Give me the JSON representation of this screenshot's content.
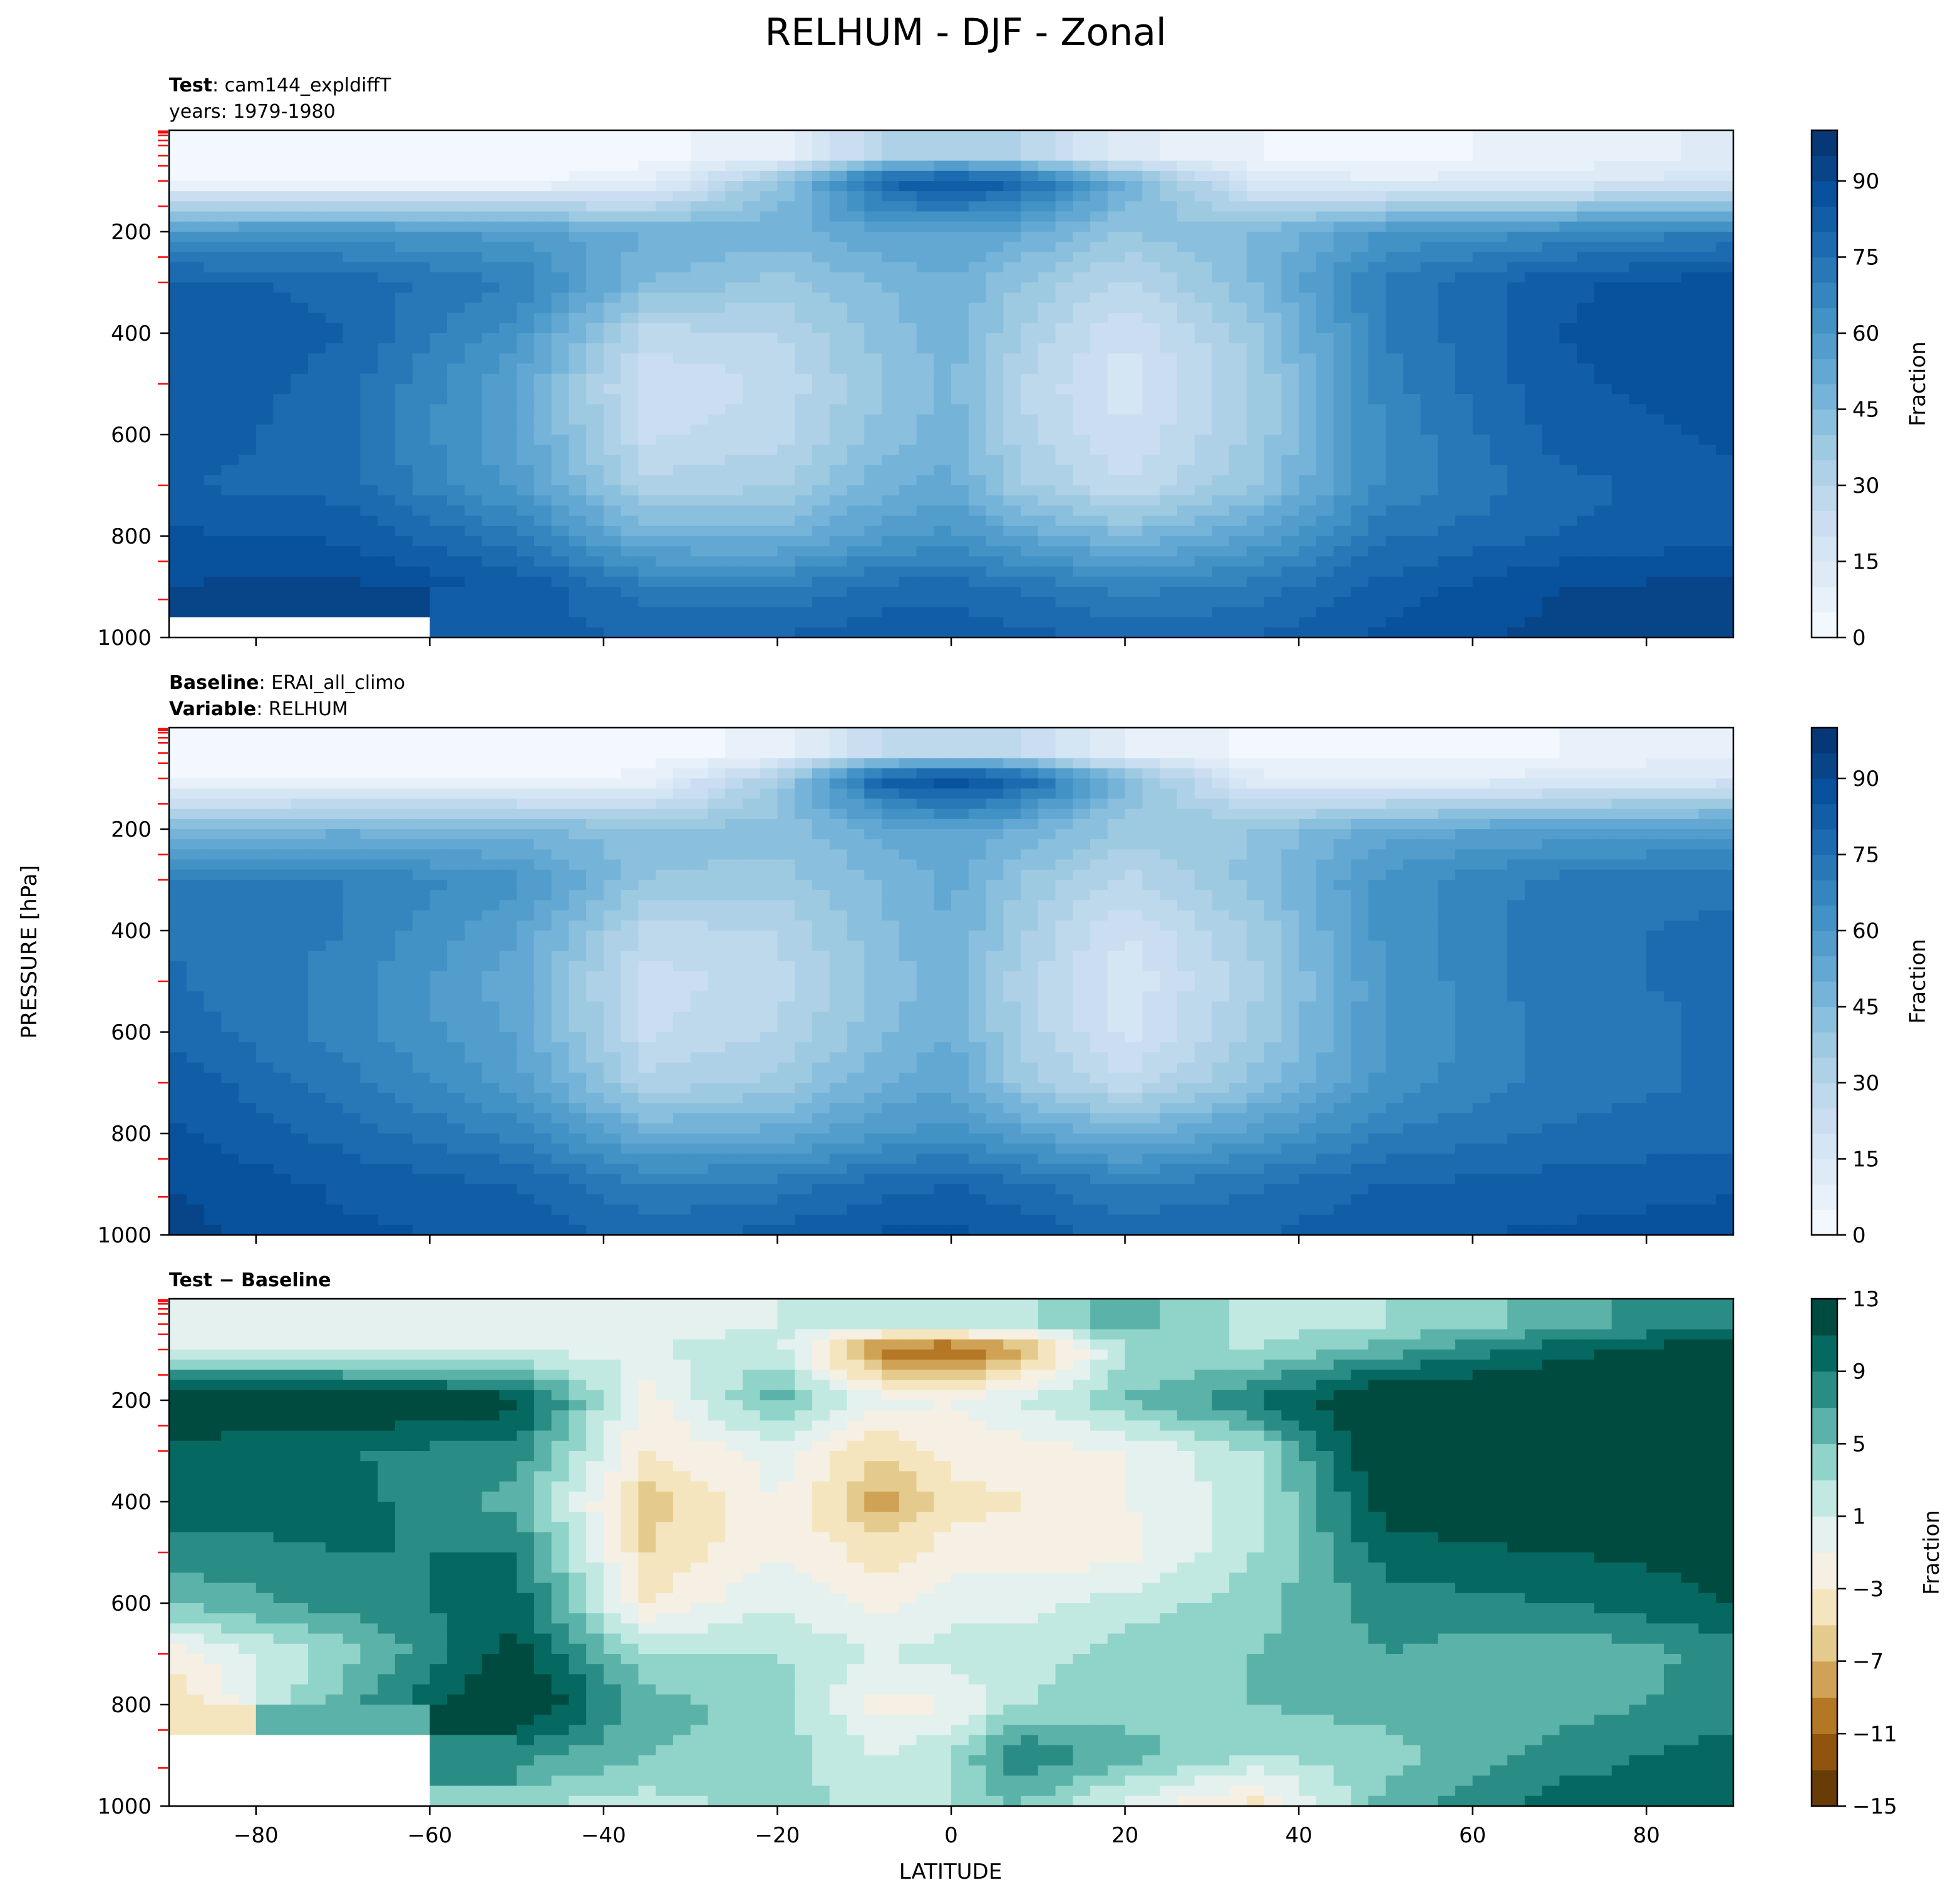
{
  "figure": {
    "title": "RELHUM - DJF - Zonal",
    "ylabel": "PRESSURE [hPa]",
    "xlabel": "LATITUDE"
  },
  "chart_data": [
    {
      "type": "heatmap",
      "panel": "test",
      "title_lines": [
        {
          "bold": "Test",
          "text": ": cam144_expldiffT"
        },
        {
          "bold": "",
          "text": "years: 1979-1980"
        }
      ],
      "x_range": [
        -90,
        90
      ],
      "y_range": [
        1000,
        0
      ],
      "y_ticks": [
        200,
        400,
        600,
        800,
        1000
      ],
      "x_ticks": [
        -80,
        -60,
        -40,
        -20,
        0,
        20,
        40,
        60,
        80
      ],
      "colormap": "Blues",
      "levels_range": [
        0,
        100
      ],
      "colorbar": {
        "label": "Fraction",
        "ticks": [
          0,
          15,
          30,
          45,
          60,
          75,
          90
        ]
      },
      "field_samples": {
        "latitudes": [
          -90,
          -70,
          -50,
          -35,
          -20,
          -8,
          0,
          8,
          20,
          35,
          50,
          70,
          90
        ],
        "pressures": [
          50,
          100,
          200,
          300,
          400,
          500,
          600,
          700,
          800,
          900,
          1000
        ],
        "values": [
          [
            2,
            2,
            2,
            3,
            8,
            30,
            35,
            30,
            12,
            5,
            4,
            6,
            12
          ],
          [
            3,
            3,
            4,
            8,
            40,
            80,
            88,
            80,
            50,
            15,
            10,
            14,
            18
          ],
          [
            60,
            62,
            58,
            50,
            48,
            55,
            55,
            52,
            40,
            45,
            60,
            65,
            70
          ],
          [
            82,
            78,
            70,
            45,
            38,
            45,
            50,
            40,
            28,
            45,
            72,
            84,
            88
          ],
          [
            84,
            80,
            62,
            28,
            30,
            42,
            48,
            35,
            20,
            38,
            70,
            85,
            90
          ],
          [
            85,
            78,
            55,
            20,
            26,
            40,
            46,
            30,
            17,
            35,
            68,
            84,
            88
          ],
          [
            84,
            76,
            55,
            24,
            28,
            42,
            48,
            32,
            20,
            36,
            66,
            82,
            86
          ],
          [
            80,
            78,
            58,
            32,
            34,
            48,
            52,
            36,
            25,
            40,
            66,
            78,
            84
          ],
          [
            86,
            84,
            72,
            48,
            48,
            58,
            62,
            54,
            45,
            55,
            74,
            80,
            84
          ],
          [
            90,
            92,
            84,
            72,
            70,
            76,
            78,
            74,
            68,
            72,
            82,
            90,
            92
          ],
          [
            null,
            null,
            84,
            78,
            80,
            84,
            84,
            82,
            78,
            80,
            86,
            92,
            94
          ]
        ]
      }
    },
    {
      "type": "heatmap",
      "panel": "baseline",
      "title_lines": [
        {
          "bold": "Baseline",
          "text": ": ERAI_all_climo"
        },
        {
          "bold": "Variable",
          "text": ": RELHUM"
        }
      ],
      "x_range": [
        -90,
        90
      ],
      "y_range": [
        1000,
        0
      ],
      "y_ticks": [
        200,
        400,
        600,
        800,
        1000
      ],
      "x_ticks": [
        -80,
        -60,
        -40,
        -20,
        0,
        20,
        40,
        60,
        80
      ],
      "colormap": "Blues",
      "levels_range": [
        0,
        100
      ],
      "colorbar": {
        "label": "Fraction",
        "ticks": [
          0,
          15,
          30,
          45,
          60,
          75,
          90
        ]
      },
      "field_samples": {
        "latitudes": [
          -90,
          -70,
          -50,
          -35,
          -20,
          -8,
          0,
          8,
          20,
          35,
          50,
          70,
          90
        ],
        "pressures": [
          50,
          100,
          200,
          300,
          400,
          500,
          600,
          700,
          800,
          900,
          1000
        ],
        "values": [
          [
            2,
            2,
            2,
            3,
            6,
            25,
            30,
            25,
            10,
            4,
            3,
            5,
            10
          ],
          [
            3,
            3,
            4,
            6,
            35,
            82,
            92,
            82,
            45,
            12,
            8,
            12,
            16
          ],
          [
            45,
            48,
            46,
            42,
            42,
            52,
            55,
            50,
            38,
            40,
            52,
            56,
            58
          ],
          [
            72,
            70,
            62,
            40,
            38,
            45,
            52,
            40,
            28,
            42,
            62,
            72,
            74
          ],
          [
            74,
            70,
            56,
            28,
            30,
            44,
            50,
            36,
            20,
            36,
            62,
            74,
            76
          ],
          [
            76,
            68,
            52,
            22,
            28,
            42,
            48,
            32,
            16,
            34,
            60,
            74,
            76
          ],
          [
            78,
            68,
            54,
            24,
            30,
            44,
            50,
            34,
            18,
            36,
            60,
            72,
            76
          ],
          [
            84,
            72,
            58,
            32,
            36,
            50,
            54,
            38,
            26,
            42,
            62,
            72,
            76
          ],
          [
            86,
            78,
            68,
            50,
            52,
            60,
            62,
            56,
            48,
            58,
            70,
            76,
            78
          ],
          [
            90,
            84,
            80,
            70,
            72,
            78,
            80,
            76,
            70,
            74,
            80,
            82,
            84
          ],
          [
            92,
            86,
            84,
            78,
            82,
            86,
            86,
            84,
            78,
            80,
            84,
            86,
            88
          ]
        ]
      }
    },
    {
      "type": "heatmap",
      "panel": "difference",
      "title_lines": [
        {
          "bold": "Test − Baseline",
          "text": ""
        }
      ],
      "x_range": [
        -90,
        90
      ],
      "y_range": [
        1000,
        0
      ],
      "y_ticks": [
        200,
        400,
        600,
        800,
        1000
      ],
      "x_ticks": [
        -80,
        -60,
        -40,
        -20,
        0,
        20,
        40,
        60,
        80
      ],
      "colormap": "BrBG",
      "levels_range": [
        -15,
        13
      ],
      "colorbar": {
        "label": "Fraction",
        "ticks": [
          -15,
          -11,
          -7,
          -3,
          1,
          5,
          9,
          13
        ]
      },
      "field_samples": {
        "latitudes": [
          -90,
          -70,
          -50,
          -35,
          -20,
          -8,
          0,
          8,
          20,
          35,
          50,
          70,
          90
        ],
        "pressures": [
          50,
          100,
          200,
          300,
          400,
          500,
          600,
          700,
          800,
          900,
          1000
        ],
        "values": [
          [
            0,
            0,
            0,
            0,
            1,
            2,
            2,
            2,
            6,
            2,
            3,
            6,
            9
          ],
          [
            0,
            0,
            0,
            1,
            2,
            -11,
            -12,
            -8,
            3,
            3,
            6,
            10,
            13
          ],
          [
            14,
            14,
            12,
            -2,
            6,
            0,
            -1,
            1,
            5,
            9,
            14,
            14,
            14
          ],
          [
            10,
            9,
            8,
            -3,
            0,
            -5,
            -2,
            -2,
            -1,
            3,
            14,
            14,
            14
          ],
          [
            10,
            10,
            6,
            -6,
            -1,
            -8,
            -4,
            -3,
            -1,
            2,
            12,
            14,
            14
          ],
          [
            8,
            9,
            9,
            -5,
            -1,
            -4,
            -2,
            -2,
            -2,
            3,
            10,
            11,
            12
          ],
          [
            5,
            8,
            10,
            -3,
            1,
            -2,
            0,
            0,
            2,
            4,
            8,
            9,
            11
          ],
          [
            -2,
            4,
            12,
            3,
            3,
            1,
            2,
            2,
            4,
            5,
            7,
            5,
            8
          ],
          [
            -5,
            6,
            14,
            6,
            4,
            -2,
            -1,
            3,
            4,
            5,
            6,
            6,
            8
          ],
          [
            null,
            null,
            8,
            5,
            4,
            1,
            3,
            9,
            6,
            3,
            4,
            8,
            10
          ],
          [
            null,
            null,
            3,
            2,
            4,
            2,
            3,
            5,
            0,
            -4,
            6,
            10,
            10
          ]
        ]
      }
    }
  ],
  "colors": {
    "missing": "#ffffff",
    "red_ticks": "#ff0000",
    "frame": "#000000"
  }
}
